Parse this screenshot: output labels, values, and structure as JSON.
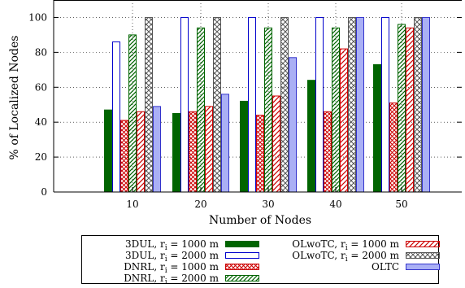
{
  "chart_data": {
    "type": "bar",
    "categories": [
      "10",
      "20",
      "30",
      "40",
      "50"
    ],
    "xlabel": "Number of Nodes",
    "ylabel": "% of Localized Nodes",
    "ylim": [
      0,
      110
    ],
    "yticks": [
      "0",
      "20",
      "40",
      "60",
      "80",
      "100"
    ],
    "grid": true,
    "legend_position": "bottom",
    "series": [
      {
        "name": "3DUL, r_i = 1000 m",
        "legend_prefix": "3DUL, r",
        "legend_suffix": " = 1000 m",
        "legend_subscript": "i",
        "values": [
          47,
          45,
          52,
          64,
          73
        ],
        "color": "#006400",
        "pattern": "solid"
      },
      {
        "name": "3DUL, r_i = 2000 m",
        "legend_prefix": "3DUL, r",
        "legend_suffix": " = 2000 m",
        "legend_subscript": "i",
        "values": [
          86,
          100,
          100,
          100,
          100
        ],
        "color": "#0000cc",
        "pattern": "empty"
      },
      {
        "name": "DNRL, r_i = 1000 m",
        "legend_prefix": "DNRL, r",
        "legend_suffix": " = 1000 m",
        "legend_subscript": "i",
        "values": [
          41,
          46,
          44,
          46,
          51
        ],
        "color": "#cc0000",
        "pattern": "crosshatch"
      },
      {
        "name": "DNRL, r_i = 2000 m",
        "legend_prefix": "DNRL, r",
        "legend_suffix": " = 2000 m",
        "legend_subscript": "i",
        "values": [
          90,
          94,
          94,
          94,
          96
        ],
        "color": "#006400",
        "pattern": "diagonal"
      },
      {
        "name": "OLwoTC, r_i = 1000 m",
        "legend_prefix": "OLwoTC, r",
        "legend_suffix": " = 1000 m",
        "legend_subscript": "i",
        "values": [
          46,
          49,
          55,
          82,
          94
        ],
        "color": "#cc0000",
        "pattern": "diagonal"
      },
      {
        "name": "OLwoTC, r_i = 2000 m",
        "legend_prefix": "OLwoTC, r",
        "legend_suffix": " = 2000 m",
        "legend_subscript": "i",
        "values": [
          100,
          100,
          100,
          100,
          100
        ],
        "color": "#555555",
        "pattern": "crosshatch"
      },
      {
        "name": "OLTC",
        "legend_prefix": "OLTC",
        "legend_suffix": "",
        "legend_subscript": "",
        "values": [
          49,
          56,
          77,
          100,
          100
        ],
        "color": "#3333cc",
        "pattern": "fill_light"
      }
    ]
  }
}
